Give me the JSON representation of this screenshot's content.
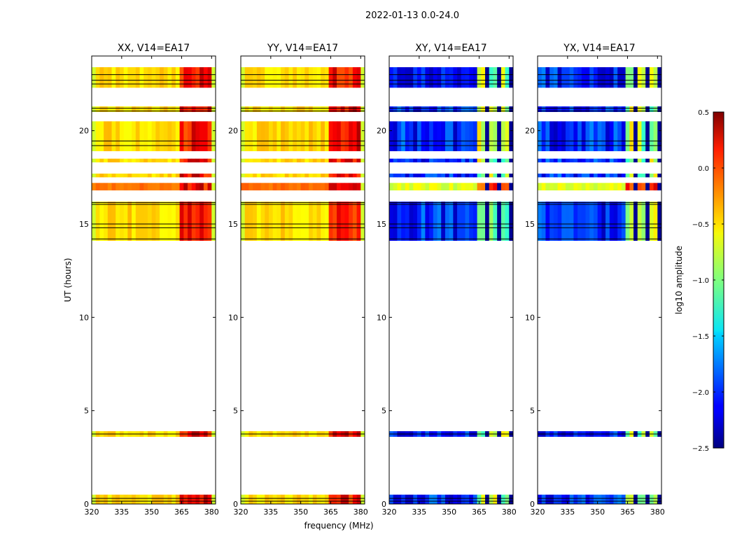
{
  "suptitle": "2022-01-13 0.0-24.0",
  "chart_data": {
    "type": "heatmap",
    "panels": [
      {
        "title": "XX, V14=EA17",
        "kind": "parallel"
      },
      {
        "title": "YY, V14=EA17",
        "kind": "parallel"
      },
      {
        "title": "XY, V14=EA17",
        "kind": "cross"
      },
      {
        "title": "YX, V14=EA17",
        "kind": "cross"
      }
    ],
    "xlabel": "frequency (MHz)",
    "ylabel": "UT (hours)",
    "xlim": [
      320,
      382
    ],
    "ylim": [
      0,
      24
    ],
    "xticks": [
      320,
      335,
      350,
      365,
      380
    ],
    "yticks": [
      0,
      5,
      10,
      15,
      20
    ],
    "data_time_bands_hours": [
      [
        0.0,
        0.5
      ],
      [
        3.6,
        3.9
      ],
      [
        14.1,
        16.2
      ],
      [
        16.8,
        17.2
      ],
      [
        17.5,
        17.7
      ],
      [
        18.3,
        18.5
      ],
      [
        18.9,
        20.5
      ],
      [
        21.0,
        21.3
      ],
      [
        22.3,
        23.4
      ]
    ],
    "flag_lines_hours": [
      0.15,
      0.3,
      3.75,
      14.2,
      14.8,
      15.0,
      16.05,
      16.15,
      19.2,
      19.45,
      21.05,
      21.2,
      22.5,
      22.7,
      23.0
    ],
    "rfi_channel_region_mhz": [
      363,
      382
    ],
    "colorbar": {
      "label": "log10 amplitude",
      "range": [
        -2.5,
        0.5
      ],
      "ticks": [
        0.5,
        0.0,
        -0.5,
        -1.0,
        -1.5,
        -2.0,
        -2.5
      ],
      "tick_labels": [
        "0.5",
        "0.0",
        "−0.5",
        "−1.0",
        "−1.5",
        "−2.0",
        "−2.5"
      ],
      "colormap": "jet"
    }
  }
}
